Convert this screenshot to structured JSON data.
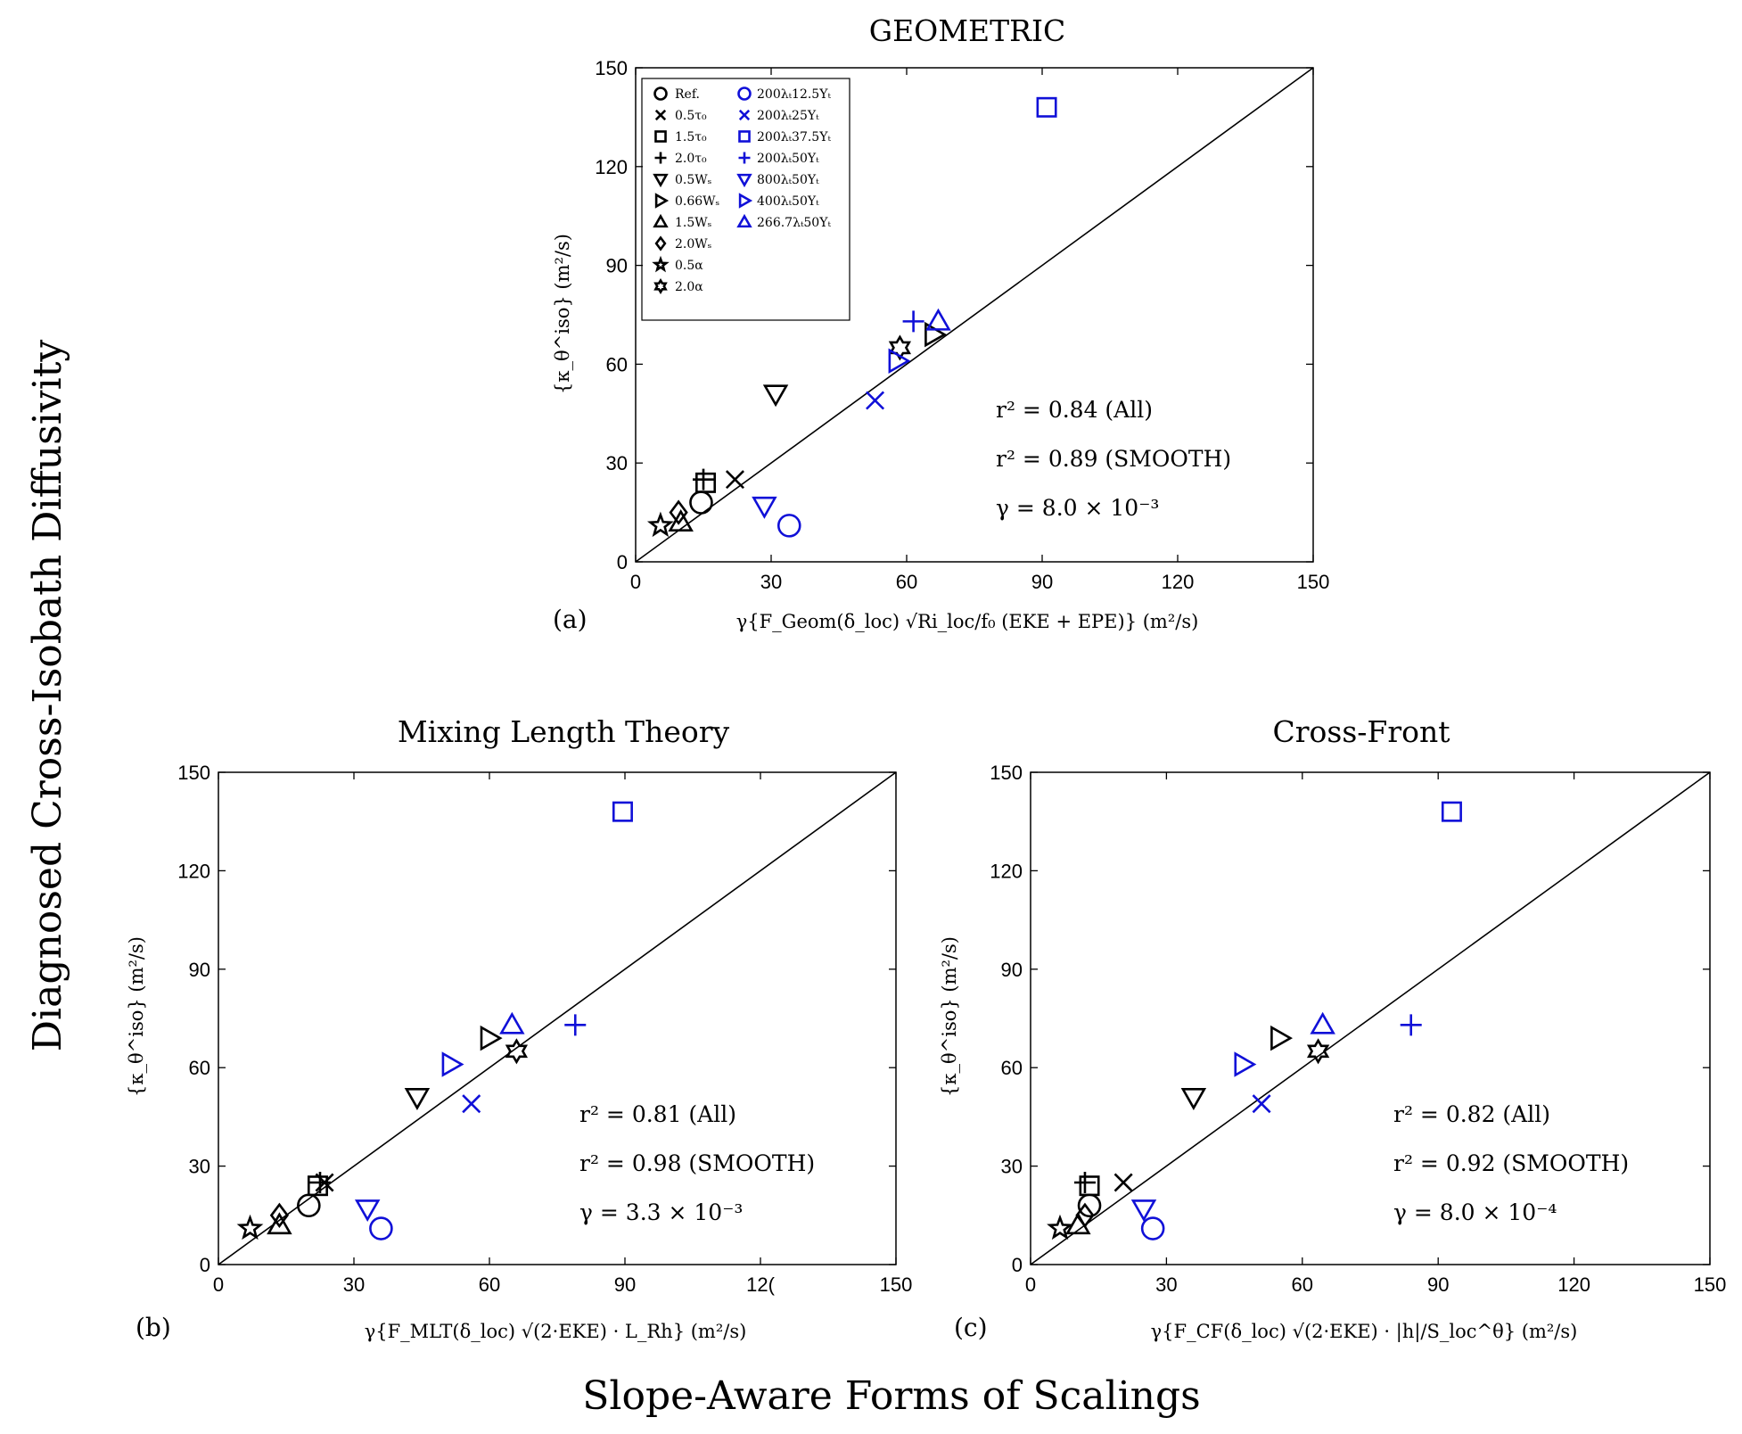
{
  "figure": {
    "supylabel": "Diagnosed Cross-Isobath Diffusivity",
    "supxlabel": "Slope-Aware Forms of Scalings"
  },
  "colors": {
    "smooth": "#000000",
    "rough": "#1010d8"
  },
  "legend": {
    "col1": [
      {
        "label": "Ref.",
        "marker": "circle"
      },
      {
        "label": "0.5τ₀",
        "marker": "x"
      },
      {
        "label": "1.5τ₀",
        "marker": "square"
      },
      {
        "label": "2.0τ₀",
        "marker": "plus"
      },
      {
        "label": "0.5Wₛ",
        "marker": "tri-down"
      },
      {
        "label": "0.66Wₛ",
        "marker": "tri-right"
      },
      {
        "label": "1.5Wₛ",
        "marker": "tri-up"
      },
      {
        "label": "2.0Wₛ",
        "marker": "diamond"
      },
      {
        "label": "0.5α",
        "marker": "star"
      },
      {
        "label": "2.0α",
        "marker": "hexagram"
      }
    ],
    "col2": [
      {
        "label": "200λₜ12.5Yₜ",
        "marker": "circle"
      },
      {
        "label": "200λₜ25Yₜ",
        "marker": "x"
      },
      {
        "label": "200λₜ37.5Yₜ",
        "marker": "square"
      },
      {
        "label": "200λₜ50Yₜ",
        "marker": "plus"
      },
      {
        "label": "800λₜ50Yₜ",
        "marker": "tri-down"
      },
      {
        "label": "400λₜ50Yₜ",
        "marker": "tri-right"
      },
      {
        "label": "266.7λₜ50Yₜ",
        "marker": "tri-up"
      }
    ]
  },
  "chart_data": [
    {
      "type": "scatter",
      "panel": "(a)",
      "title": "GEOMETRIC",
      "xlabel": "γ{F_Geom(δ_loc) √Ri_loc/f₀ (EKE + EPE)} (m²/s)",
      "ylabel": "{κ_θ^iso} (m²/s)",
      "xlim": [
        0,
        150
      ],
      "ylim": [
        0,
        150
      ],
      "xticks": [
        "0",
        "30",
        "60",
        "90",
        "120",
        "150"
      ],
      "yticks": [
        "0",
        "30",
        "60",
        "90",
        "120",
        "150"
      ],
      "annotations": [
        "r² = 0.84 (All)",
        "r² = 0.89 (SMOOTH)",
        "γ = 8.0 × 10⁻³"
      ],
      "reference_line": "y = x",
      "series": [
        {
          "name": "Ref.",
          "marker": "circle",
          "group": "smooth",
          "x": 14.5,
          "y": 18
        },
        {
          "name": "0.5τ₀",
          "marker": "x",
          "group": "smooth",
          "x": 22,
          "y": 25
        },
        {
          "name": "1.5τ₀",
          "marker": "square",
          "group": "smooth",
          "x": 15.5,
          "y": 24
        },
        {
          "name": "2.0τ₀",
          "marker": "plus",
          "group": "smooth",
          "x": 15,
          "y": 25
        },
        {
          "name": "0.5Wₛ",
          "marker": "tri-down",
          "group": "smooth",
          "x": 31,
          "y": 51
        },
        {
          "name": "0.66Wₛ",
          "marker": "tri-right",
          "group": "smooth",
          "x": 66,
          "y": 69
        },
        {
          "name": "1.5Wₛ",
          "marker": "tri-up",
          "group": "smooth",
          "x": 10,
          "y": 12
        },
        {
          "name": "2.0Wₛ",
          "marker": "diamond",
          "group": "smooth",
          "x": 9.5,
          "y": 15
        },
        {
          "name": "0.5α",
          "marker": "star",
          "group": "smooth",
          "x": 5.5,
          "y": 11
        },
        {
          "name": "2.0α",
          "marker": "hexagram",
          "group": "smooth",
          "x": 58.5,
          "y": 65
        },
        {
          "name": "200λₜ12.5Yₜ",
          "marker": "circle",
          "group": "rough",
          "x": 34,
          "y": 11
        },
        {
          "name": "200λₜ25Yₜ",
          "marker": "x",
          "group": "rough",
          "x": 53,
          "y": 49
        },
        {
          "name": "200λₜ37.5Yₜ",
          "marker": "square",
          "group": "rough",
          "x": 91,
          "y": 138
        },
        {
          "name": "200λₜ50Yₜ",
          "marker": "plus",
          "group": "rough",
          "x": 61.5,
          "y": 73
        },
        {
          "name": "800λₜ50Yₜ",
          "marker": "tri-down",
          "group": "rough",
          "x": 28.5,
          "y": 17
        },
        {
          "name": "400λₜ50Yₜ",
          "marker": "tri-right",
          "group": "rough",
          "x": 58,
          "y": 61
        },
        {
          "name": "266.7λₜ50Yₜ",
          "marker": "tri-up",
          "group": "rough",
          "x": 67,
          "y": 73
        }
      ]
    },
    {
      "type": "scatter",
      "panel": "(b)",
      "title": "Mixing Length Theory",
      "xlabel": "γ{F_MLT(δ_loc) √(2·EKE) · L_Rh} (m²/s)",
      "ylabel": "{κ_θ^iso} (m²/s)",
      "xlim": [
        0,
        150
      ],
      "ylim": [
        0,
        150
      ],
      "xticks": [
        "0",
        "30",
        "60",
        "90",
        "12(",
        "150"
      ],
      "yticks": [
        "0",
        "30",
        "60",
        "90",
        "120",
        "150"
      ],
      "annotations": [
        "r² = 0.81 (All)",
        "r² = 0.98 (SMOOTH)",
        "γ = 3.3 × 10⁻³"
      ],
      "reference_line": "y = x",
      "series": [
        {
          "name": "Ref.",
          "marker": "circle",
          "group": "smooth",
          "x": 20,
          "y": 18
        },
        {
          "name": "0.5τ₀",
          "marker": "x",
          "group": "smooth",
          "x": 23.5,
          "y": 25
        },
        {
          "name": "1.5τ₀",
          "marker": "square",
          "group": "smooth",
          "x": 22,
          "y": 24
        },
        {
          "name": "2.0τ₀",
          "marker": "plus",
          "group": "smooth",
          "x": 22.5,
          "y": 25
        },
        {
          "name": "0.5Wₛ",
          "marker": "tri-down",
          "group": "smooth",
          "x": 44,
          "y": 51
        },
        {
          "name": "0.66Wₛ",
          "marker": "tri-right",
          "group": "smooth",
          "x": 60,
          "y": 69
        },
        {
          "name": "1.5Wₛ",
          "marker": "tri-up",
          "group": "smooth",
          "x": 13.5,
          "y": 12
        },
        {
          "name": "2.0Wₛ",
          "marker": "diamond",
          "group": "smooth",
          "x": 13.5,
          "y": 15
        },
        {
          "name": "0.5α",
          "marker": "star",
          "group": "smooth",
          "x": 7,
          "y": 11
        },
        {
          "name": "2.0α",
          "marker": "hexagram",
          "group": "smooth",
          "x": 66,
          "y": 65
        },
        {
          "name": "200λₜ12.5Yₜ",
          "marker": "circle",
          "group": "rough",
          "x": 36,
          "y": 11
        },
        {
          "name": "200λₜ25Yₜ",
          "marker": "x",
          "group": "rough",
          "x": 56,
          "y": 49
        },
        {
          "name": "200λₜ37.5Yₜ",
          "marker": "square",
          "group": "rough",
          "x": 89.5,
          "y": 138
        },
        {
          "name": "200λₜ50Yₜ",
          "marker": "plus",
          "group": "rough",
          "x": 79,
          "y": 73
        },
        {
          "name": "800λₜ50Yₜ",
          "marker": "tri-down",
          "group": "rough",
          "x": 33,
          "y": 17
        },
        {
          "name": "400λₜ50Yₜ",
          "marker": "tri-right",
          "group": "rough",
          "x": 51.5,
          "y": 61
        },
        {
          "name": "266.7λₜ50Yₜ",
          "marker": "tri-up",
          "group": "rough",
          "x": 65,
          "y": 73
        }
      ]
    },
    {
      "type": "scatter",
      "panel": "(c)",
      "title": "Cross-Front",
      "xlabel": "γ{F_CF(δ_loc) √(2·EKE) · |h|/S_loc^θ} (m²/s)",
      "ylabel": "{κ_θ^iso} (m²/s)",
      "xlim": [
        0,
        150
      ],
      "ylim": [
        0,
        150
      ],
      "xticks": [
        "0",
        "30",
        "60",
        "90",
        "120",
        "150"
      ],
      "yticks": [
        "0",
        "30",
        "60",
        "90",
        "120",
        "150"
      ],
      "annotations": [
        "r² = 0.82 (All)",
        "r² = 0.92 (SMOOTH)",
        "γ = 8.0 × 10⁻⁴"
      ],
      "reference_line": "y = x",
      "series": [
        {
          "name": "Ref.",
          "marker": "circle",
          "group": "smooth",
          "x": 13,
          "y": 18
        },
        {
          "name": "0.5τ₀",
          "marker": "x",
          "group": "smooth",
          "x": 20.5,
          "y": 25
        },
        {
          "name": "1.5τ₀",
          "marker": "square",
          "group": "smooth",
          "x": 13,
          "y": 24
        },
        {
          "name": "2.0τ₀",
          "marker": "plus",
          "group": "smooth",
          "x": 12,
          "y": 25
        },
        {
          "name": "0.5Wₛ",
          "marker": "tri-down",
          "group": "smooth",
          "x": 36,
          "y": 51
        },
        {
          "name": "0.66Wₛ",
          "marker": "tri-right",
          "group": "smooth",
          "x": 55,
          "y": 69
        },
        {
          "name": "1.5Wₛ",
          "marker": "tri-up",
          "group": "smooth",
          "x": 10.5,
          "y": 12
        },
        {
          "name": "2.0Wₛ",
          "marker": "diamond",
          "group": "smooth",
          "x": 12,
          "y": 15
        },
        {
          "name": "0.5α",
          "marker": "star",
          "group": "smooth",
          "x": 6.5,
          "y": 11
        },
        {
          "name": "2.0α",
          "marker": "hexagram",
          "group": "smooth",
          "x": 63.5,
          "y": 65
        },
        {
          "name": "200λₜ12.5Yₜ",
          "marker": "circle",
          "group": "rough",
          "x": 27,
          "y": 11
        },
        {
          "name": "200λₜ25Yₜ",
          "marker": "x",
          "group": "rough",
          "x": 51,
          "y": 49
        },
        {
          "name": "200λₜ37.5Yₜ",
          "marker": "square",
          "group": "rough",
          "x": 93,
          "y": 138
        },
        {
          "name": "200λₜ50Yₜ",
          "marker": "plus",
          "group": "rough",
          "x": 84,
          "y": 73
        },
        {
          "name": "800λₜ50Yₜ",
          "marker": "tri-down",
          "group": "rough",
          "x": 25,
          "y": 17
        },
        {
          "name": "400λₜ50Yₜ",
          "marker": "tri-right",
          "group": "rough",
          "x": 47,
          "y": 61
        },
        {
          "name": "266.7λₜ50Yₜ",
          "marker": "tri-up",
          "group": "rough",
          "x": 64.5,
          "y": 73
        }
      ]
    }
  ]
}
